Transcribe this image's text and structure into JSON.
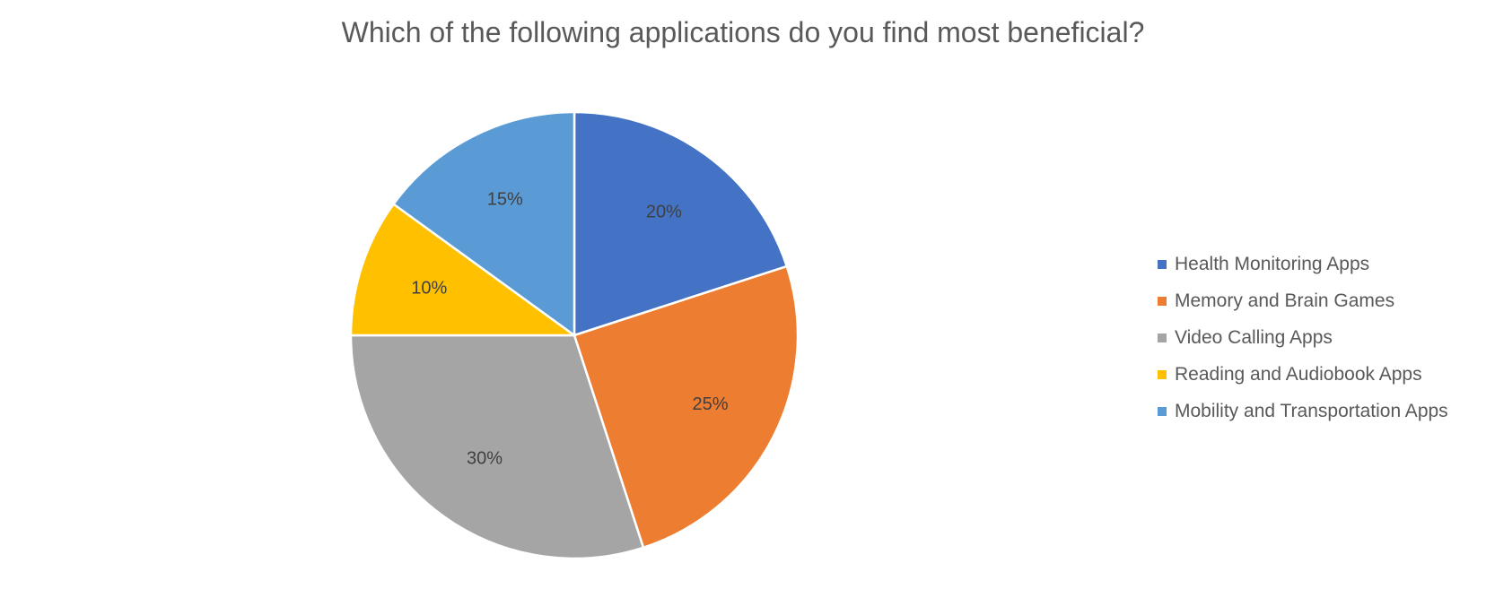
{
  "chart_data": {
    "type": "pie",
    "title": "Which of the following applications do you find most beneficial?",
    "legend_position": "right",
    "slices": [
      {
        "label": "Health Monitoring Apps",
        "value": 20,
        "display": "20%",
        "color": "#4472C4"
      },
      {
        "label": "Memory and Brain Games",
        "value": 25,
        "display": "25%",
        "color": "#ED7D31"
      },
      {
        "label": "Video Calling Apps",
        "value": 30,
        "display": "30%",
        "color": "#A5A5A5"
      },
      {
        "label": "Reading and Audiobook Apps",
        "value": 10,
        "display": "10%",
        "color": "#FFC000"
      },
      {
        "label": "Mobility and Transportation Apps",
        "value": 15,
        "display": "15%",
        "color": "#5B9BD5"
      }
    ]
  }
}
